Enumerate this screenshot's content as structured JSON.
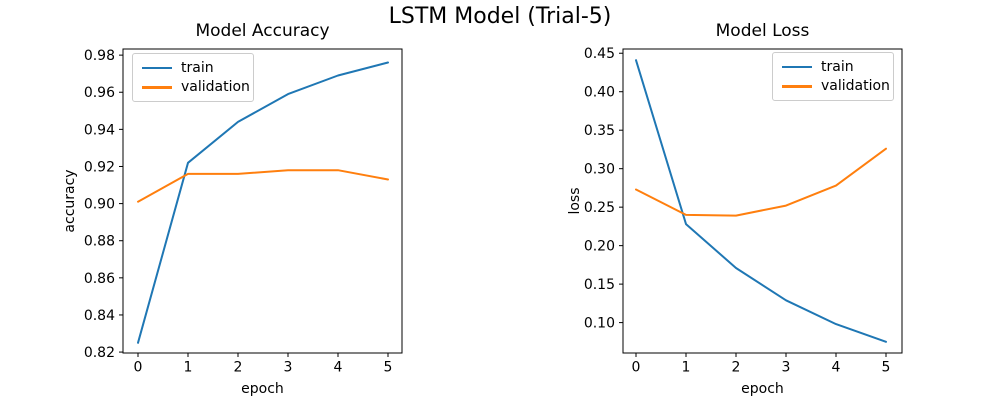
{
  "figure": {
    "suptitle": "LSTM Model (Trial-5)",
    "background": "#ffffff",
    "text_color": "#000000",
    "spine_color": "#000000"
  },
  "legend": {
    "train_label": "train",
    "validation_label": "validation"
  },
  "chart_data": [
    {
      "type": "line",
      "title": "Model Accuracy",
      "xlabel": "epoch",
      "ylabel": "accuracy",
      "x": [
        0,
        1,
        2,
        3,
        4,
        5
      ],
      "series": [
        {
          "name": "train",
          "color": "#1f77b4",
          "values": [
            0.825,
            0.922,
            0.944,
            0.959,
            0.969,
            0.976
          ]
        },
        {
          "name": "validation",
          "color": "#ff7f0e",
          "values": [
            0.901,
            0.916,
            0.916,
            0.918,
            0.918,
            0.913
          ]
        }
      ],
      "xlim": [
        -0.3,
        5.28
      ],
      "ylim": [
        0.8195,
        0.9833
      ],
      "xticks": [
        {
          "value": 0,
          "label": "0"
        },
        {
          "value": 1,
          "label": "1"
        },
        {
          "value": 2,
          "label": "2"
        },
        {
          "value": 3,
          "label": "3"
        },
        {
          "value": 4,
          "label": "4"
        },
        {
          "value": 5,
          "label": "5"
        }
      ],
      "yticks": [
        {
          "value": 0.82,
          "label": "0.82"
        },
        {
          "value": 0.84,
          "label": "0.84"
        },
        {
          "value": 0.86,
          "label": "0.86"
        },
        {
          "value": 0.88,
          "label": "0.88"
        },
        {
          "value": 0.9,
          "label": "0.90"
        },
        {
          "value": 0.92,
          "label": "0.92"
        },
        {
          "value": 0.94,
          "label": "0.94"
        },
        {
          "value": 0.96,
          "label": "0.96"
        },
        {
          "value": 0.98,
          "label": "0.98"
        }
      ],
      "grid": false,
      "legend_position": "upper left"
    },
    {
      "type": "line",
      "title": "Model Loss",
      "xlabel": "epoch",
      "ylabel": "loss",
      "x": [
        0,
        1,
        2,
        3,
        4,
        5
      ],
      "series": [
        {
          "name": "train",
          "color": "#1f77b4",
          "values": [
            0.441,
            0.228,
            0.171,
            0.129,
            0.098,
            0.075
          ]
        },
        {
          "name": "validation",
          "color": "#ff7f0e",
          "values": [
            0.273,
            0.24,
            0.239,
            0.252,
            0.278,
            0.326
          ]
        }
      ],
      "xlim": [
        -0.26,
        5.32
      ],
      "ylim": [
        0.0605,
        0.4555
      ],
      "xticks": [
        {
          "value": 0,
          "label": "0"
        },
        {
          "value": 1,
          "label": "1"
        },
        {
          "value": 2,
          "label": "2"
        },
        {
          "value": 3,
          "label": "3"
        },
        {
          "value": 4,
          "label": "4"
        },
        {
          "value": 5,
          "label": "5"
        }
      ],
      "yticks": [
        {
          "value": 0.1,
          "label": "0.10"
        },
        {
          "value": 0.15,
          "label": "0.15"
        },
        {
          "value": 0.2,
          "label": "0.20"
        },
        {
          "value": 0.25,
          "label": "0.25"
        },
        {
          "value": 0.3,
          "label": "0.30"
        },
        {
          "value": 0.35,
          "label": "0.35"
        },
        {
          "value": 0.4,
          "label": "0.40"
        },
        {
          "value": 0.45,
          "label": "0.45"
        }
      ],
      "grid": false,
      "legend_position": "upper right"
    }
  ]
}
